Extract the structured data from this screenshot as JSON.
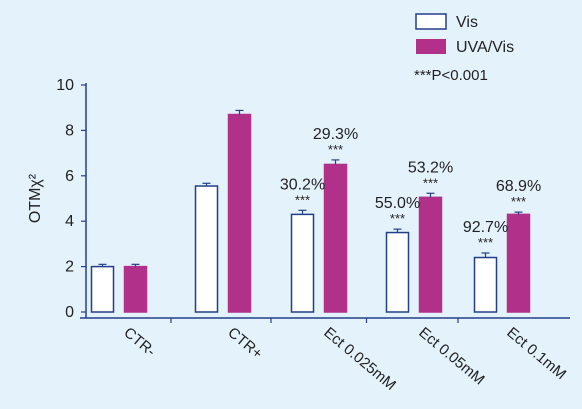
{
  "chart_data": {
    "type": "bar",
    "categories": [
      "CTR-",
      "CTR+",
      "Ect 0.025mM",
      "Ect 0.05mM",
      "Ect 0.1mM"
    ],
    "series": [
      {
        "name": "Vis",
        "values": [
          2.0,
          5.55,
          4.3,
          3.5,
          2.4
        ],
        "errors": [
          0.1,
          0.12,
          0.18,
          0.15,
          0.2
        ],
        "fill": "#ffffff",
        "stroke": "#233f8a"
      },
      {
        "name": "UVA/Vis",
        "values": [
          2.0,
          8.7,
          6.5,
          5.05,
          4.3
        ],
        "errors": [
          0.1,
          0.18,
          0.2,
          0.18,
          0.1
        ],
        "fill": "#b0308a",
        "stroke": "#b0308a"
      }
    ],
    "annotations": {
      "percent": [
        [
          "",
          "",
          "30.2%",
          "55.0%",
          "92.7%"
        ],
        [
          "",
          "",
          "29.3%",
          "53.2%",
          "68.9%"
        ]
      ],
      "significance": [
        [
          "",
          "",
          "***",
          "***",
          "***"
        ],
        [
          "",
          "",
          "***",
          "***",
          "***"
        ]
      ]
    },
    "ylabel": "OTMχ²",
    "xlabel": "",
    "ylim": [
      0,
      10
    ],
    "yticks": [
      0,
      2,
      4,
      6,
      8,
      10
    ],
    "legend_position": "top-right",
    "legend_note": "***P<0.001",
    "grid": false,
    "colors": {
      "background": "#e4f2fc",
      "axis": "#233f8a",
      "error_bar": "#233f8a"
    }
  }
}
